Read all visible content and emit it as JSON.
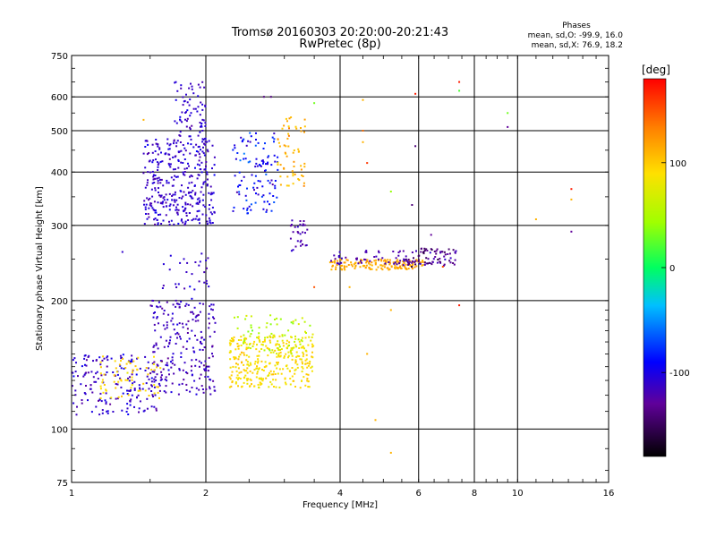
{
  "chart_data": {
    "type": "scatter",
    "title": "Tromsø 20160303 20:20:00-20:21:43",
    "subtitle": "RwPretec (8p)",
    "xlabel": "Frequency [MHz]",
    "ylabel": "Stationary phase Virtual Height [km]",
    "x_scale": "log",
    "y_scale": "log",
    "xlim": [
      1,
      16
    ],
    "ylim": [
      75,
      750
    ],
    "x_ticks": [
      1,
      2,
      4,
      6,
      8,
      10,
      16
    ],
    "x_tick_labels": [
      "1",
      "2",
      "4",
      "6",
      "8",
      "10",
      "16"
    ],
    "y_ticks": [
      75,
      100,
      200,
      300,
      400,
      500,
      600,
      750
    ],
    "y_tick_labels": [
      "75",
      "100",
      "200",
      "300",
      "400",
      "500",
      "600",
      "750"
    ],
    "x_gridlines": [
      2,
      4,
      6,
      8,
      10
    ],
    "y_gridlines": [
      100,
      200,
      300,
      400,
      500,
      600
    ],
    "grid": true,
    "stats": {
      "heading": "Phases",
      "line_o": "mean, sd,O: -99.9, 16.0",
      "line_x": "mean, sd,X:  76.9, 18.2"
    },
    "colorbar": {
      "label": "[deg]",
      "range": [
        -180,
        180
      ],
      "ticks": [
        100,
        0,
        -100
      ],
      "tick_labels": [
        "100",
        "0",
        "-100"
      ],
      "placement": "right"
    },
    "clusters": [
      {
        "xmin": 1.0,
        "xmax": 1.55,
        "ymin": 108,
        "ymax": 150,
        "n": 170,
        "phase": -110,
        "spread": 25
      },
      {
        "xmin": 1.15,
        "xmax": 1.6,
        "ymin": 118,
        "ymax": 148,
        "n": 70,
        "phase": 95,
        "spread": 20
      },
      {
        "xmin": 1.5,
        "xmax": 2.1,
        "ymin": 120,
        "ymax": 200,
        "n": 230,
        "phase": -115,
        "spread": 25
      },
      {
        "xmin": 1.6,
        "xmax": 2.05,
        "ymin": 200,
        "ymax": 260,
        "n": 30,
        "phase": -110,
        "spread": 20
      },
      {
        "xmin": 1.45,
        "xmax": 2.1,
        "ymin": 300,
        "ymax": 480,
        "n": 360,
        "phase": -110,
        "spread": 22
      },
      {
        "xmin": 1.7,
        "xmax": 2.0,
        "ymin": 480,
        "ymax": 650,
        "n": 70,
        "phase": -110,
        "spread": 20
      },
      {
        "xmin": 2.25,
        "xmax": 3.5,
        "ymin": 125,
        "ymax": 165,
        "n": 320,
        "phase": 90,
        "spread": 25
      },
      {
        "xmin": 2.3,
        "xmax": 3.5,
        "ymin": 150,
        "ymax": 185,
        "n": 80,
        "phase": 60,
        "spread": 45
      },
      {
        "xmin": 2.3,
        "xmax": 2.9,
        "ymin": 320,
        "ymax": 500,
        "n": 110,
        "phase": -90,
        "spread": 45
      },
      {
        "xmin": 2.9,
        "xmax": 3.35,
        "ymin": 370,
        "ymax": 540,
        "n": 60,
        "phase": 110,
        "spread": 30
      },
      {
        "xmin": 3.1,
        "xmax": 3.4,
        "ymin": 260,
        "ymax": 310,
        "n": 30,
        "phase": -120,
        "spread": 20
      },
      {
        "xmin": 3.8,
        "xmax": 6.2,
        "ymin": 236,
        "ymax": 250,
        "n": 160,
        "phase": 115,
        "spread": 15
      },
      {
        "xmin": 3.8,
        "xmax": 7.3,
        "ymin": 242,
        "ymax": 262,
        "n": 80,
        "phase": -120,
        "spread": 20
      },
      {
        "xmin": 5.6,
        "xmax": 7.2,
        "ymin": 240,
        "ymax": 265,
        "n": 50,
        "phase": -140,
        "spread": 25
      }
    ],
    "outliers": [
      {
        "x": 1.45,
        "y": 530,
        "phase": 110
      },
      {
        "x": 1.3,
        "y": 260,
        "phase": -110
      },
      {
        "x": 2.7,
        "y": 600,
        "phase": -140
      },
      {
        "x": 2.8,
        "y": 600,
        "phase": -140
      },
      {
        "x": 3.5,
        "y": 580,
        "phase": 30
      },
      {
        "x": 4.5,
        "y": 590,
        "phase": 110
      },
      {
        "x": 4.5,
        "y": 500,
        "phase": 140
      },
      {
        "x": 4.5,
        "y": 470,
        "phase": 110
      },
      {
        "x": 4.6,
        "y": 420,
        "phase": 160
      },
      {
        "x": 5.2,
        "y": 360,
        "phase": 40
      },
      {
        "x": 5.9,
        "y": 610,
        "phase": 170
      },
      {
        "x": 5.9,
        "y": 460,
        "phase": -140
      },
      {
        "x": 5.8,
        "y": 335,
        "phase": -140
      },
      {
        "x": 6.4,
        "y": 285,
        "phase": -130
      },
      {
        "x": 7.4,
        "y": 650,
        "phase": 170
      },
      {
        "x": 7.4,
        "y": 620,
        "phase": 20
      },
      {
        "x": 7.4,
        "y": 195,
        "phase": 170
      },
      {
        "x": 9.5,
        "y": 550,
        "phase": 30
      },
      {
        "x": 9.5,
        "y": 510,
        "phase": -130
      },
      {
        "x": 11.0,
        "y": 310,
        "phase": 110
      },
      {
        "x": 13.2,
        "y": 365,
        "phase": 170
      },
      {
        "x": 13.2,
        "y": 345,
        "phase": 110
      },
      {
        "x": 13.2,
        "y": 290,
        "phase": -130
      },
      {
        "x": 4.6,
        "y": 150,
        "phase": 110
      },
      {
        "x": 4.8,
        "y": 105,
        "phase": 110
      },
      {
        "x": 5.2,
        "y": 88,
        "phase": 110
      },
      {
        "x": 5.2,
        "y": 190,
        "phase": 110
      },
      {
        "x": 4.2,
        "y": 215,
        "phase": 110
      },
      {
        "x": 3.5,
        "y": 215,
        "phase": 150
      },
      {
        "x": 6.8,
        "y": 240,
        "phase": 150
      }
    ]
  }
}
